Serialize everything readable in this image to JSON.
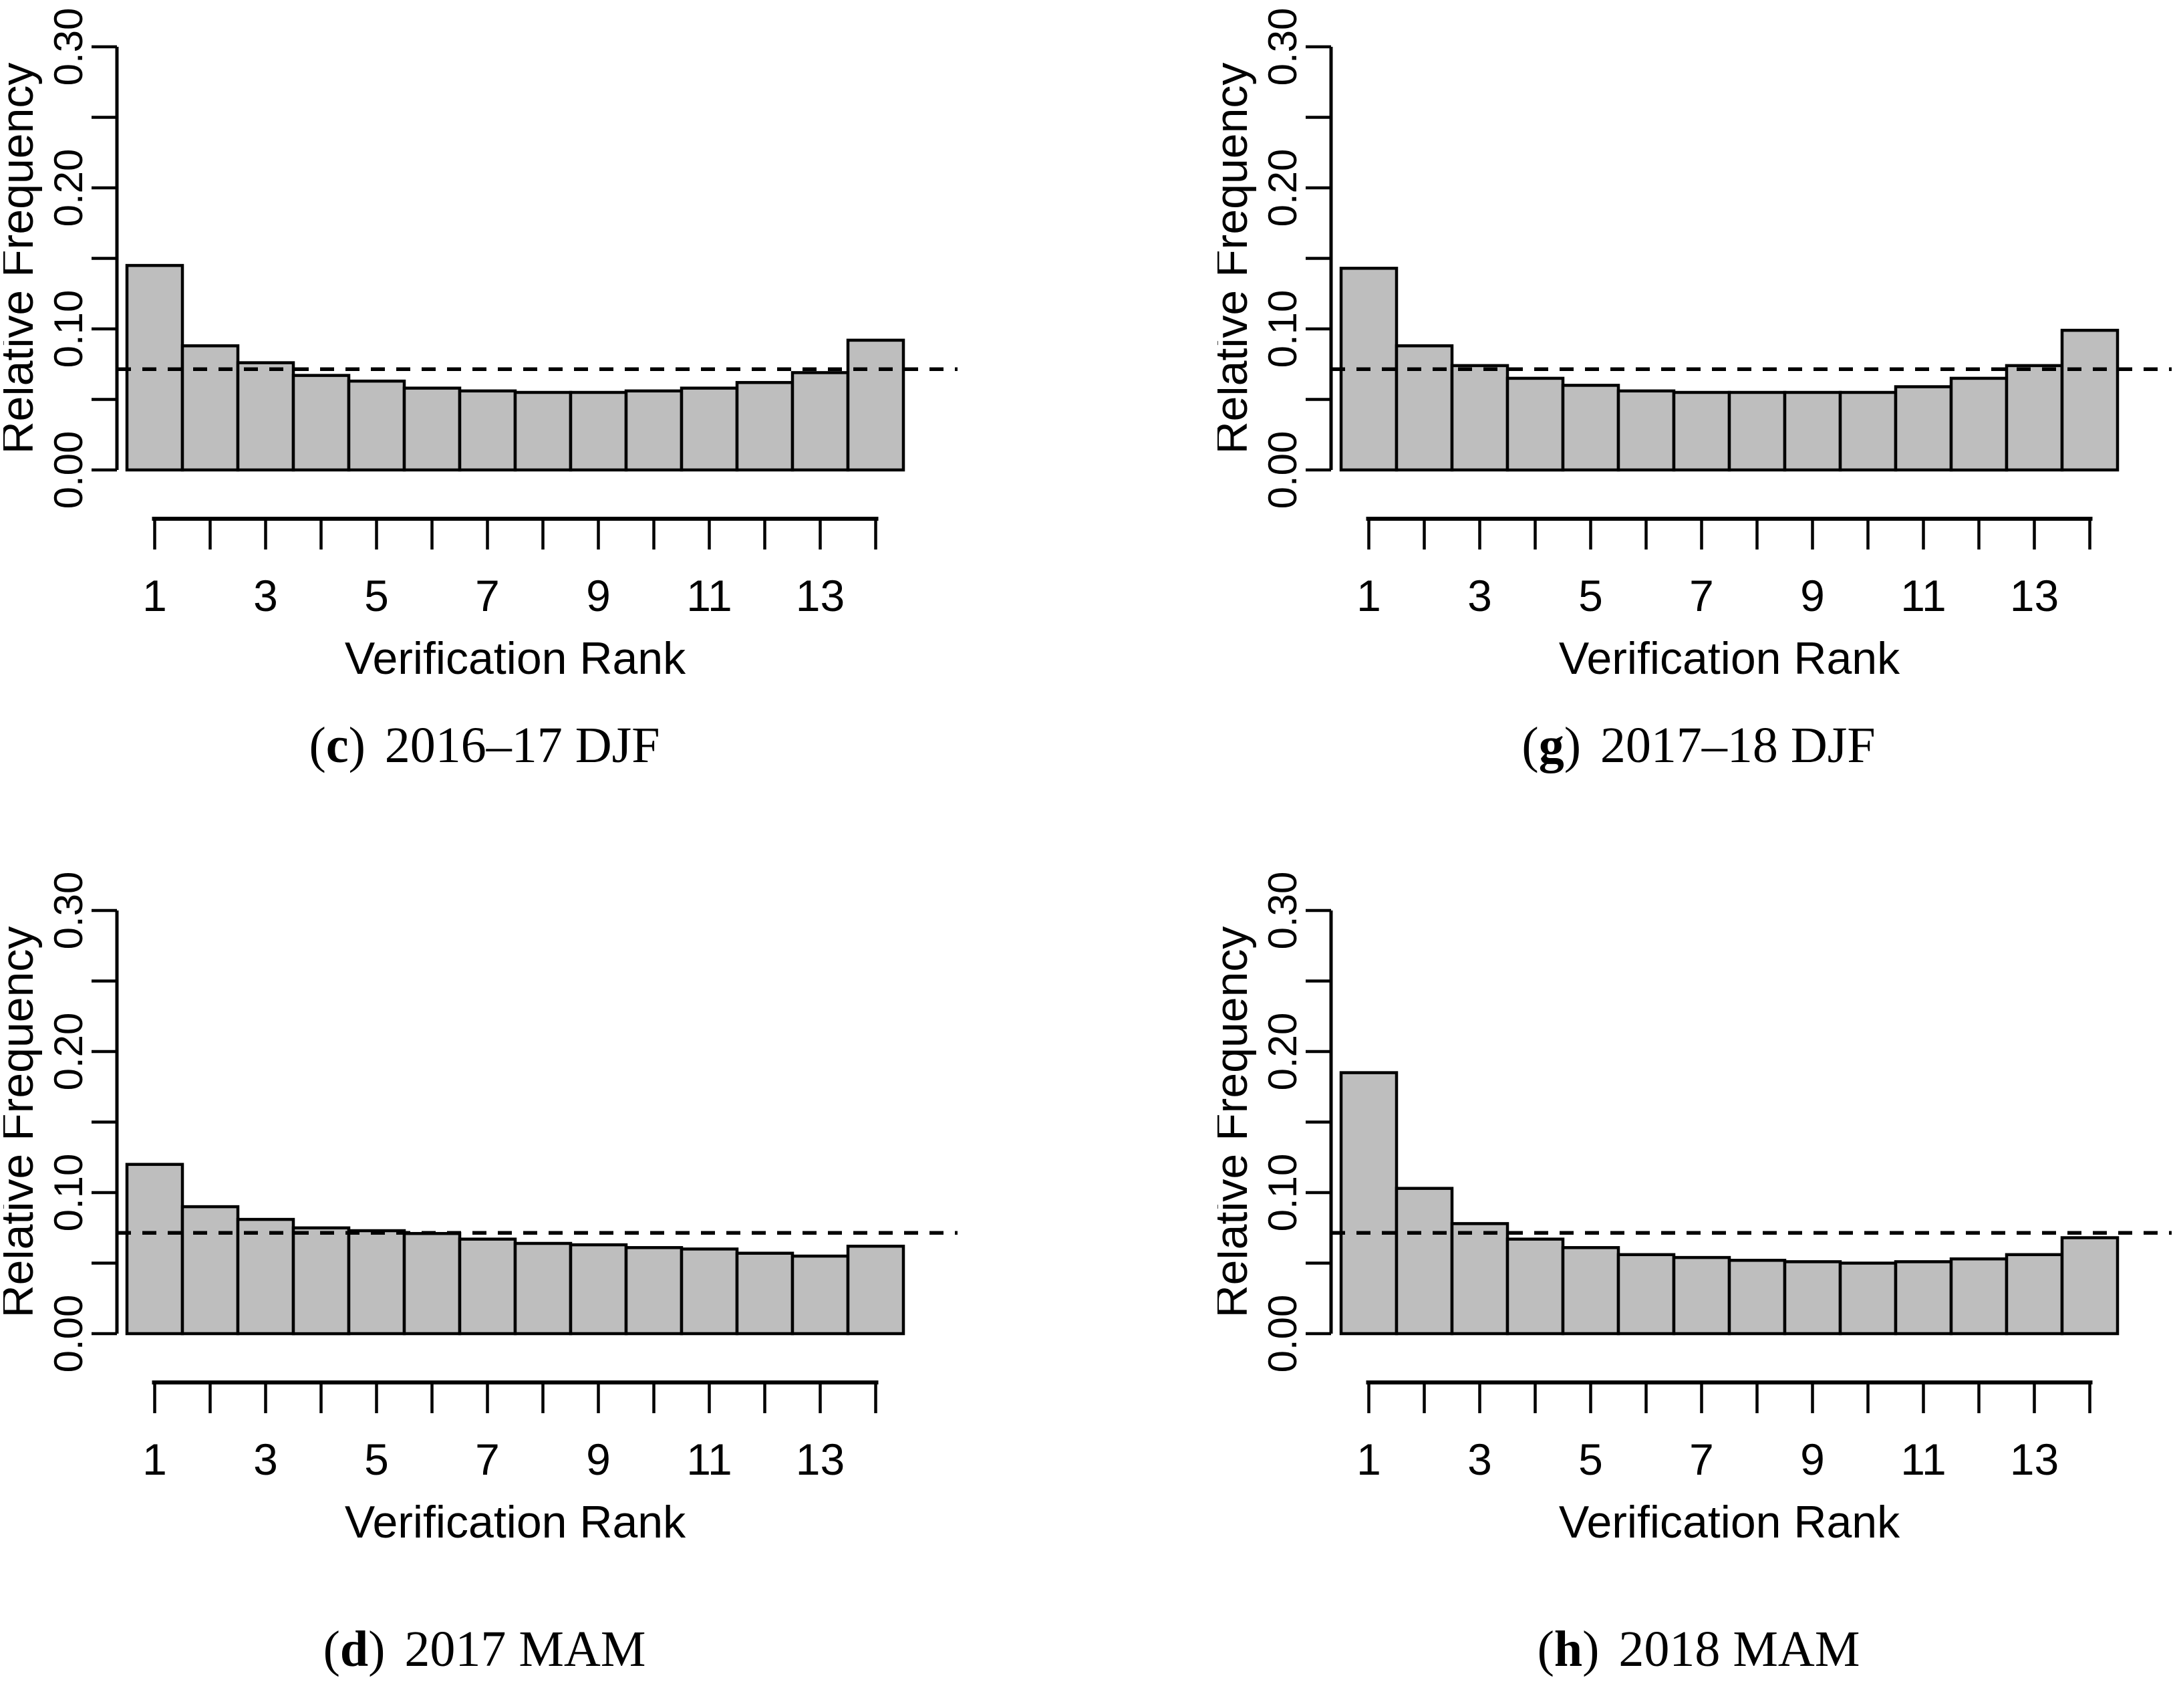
{
  "shared": {
    "caption_open": "(",
    "caption_close": ")",
    "colors": {
      "background": "#ffffff",
      "bar_fill": "#bebebe",
      "bar_stroke": "#000000",
      "axis": "#000000",
      "reference_line": "#000000",
      "text": "#000000"
    }
  },
  "chart_data": [
    {
      "type": "bar",
      "panel": "top-left",
      "title": "(c) 2016–17 DJF",
      "caption": {
        "letter": "c",
        "text": "2016–17 DJF"
      },
      "xlabel": "Verification Rank",
      "ylabel": "Relative Frequency",
      "ylim": [
        0,
        0.3
      ],
      "y_tick_step": 0.05,
      "y_tick_labels": [
        "0.00",
        "0.10",
        "0.20",
        "0.30"
      ],
      "x_tick_labels": [
        "1",
        "3",
        "5",
        "7",
        "9",
        "11",
        "13"
      ],
      "categories": [
        1,
        2,
        3,
        4,
        5,
        6,
        7,
        8,
        9,
        10,
        11,
        12,
        13,
        14
      ],
      "values": [
        0.145,
        0.088,
        0.076,
        0.067,
        0.063,
        0.058,
        0.056,
        0.055,
        0.055,
        0.056,
        0.058,
        0.062,
        0.069,
        0.092
      ],
      "reference_line": 0.0714,
      "grid": false,
      "legend": "none"
    },
    {
      "type": "bar",
      "panel": "top-right",
      "title": "(g) 2017–18 DJF",
      "caption": {
        "letter": "g",
        "text": "2017–18 DJF"
      },
      "xlabel": "Verification Rank",
      "ylabel": "Relative Frequency",
      "ylim": [
        0,
        0.3
      ],
      "y_tick_step": 0.05,
      "y_tick_labels": [
        "0.00",
        "0.10",
        "0.20",
        "0.30"
      ],
      "x_tick_labels": [
        "1",
        "3",
        "5",
        "7",
        "9",
        "11",
        "13"
      ],
      "categories": [
        1,
        2,
        3,
        4,
        5,
        6,
        7,
        8,
        9,
        10,
        11,
        12,
        13,
        14
      ],
      "values": [
        0.143,
        0.088,
        0.074,
        0.065,
        0.06,
        0.056,
        0.055,
        0.055,
        0.055,
        0.055,
        0.059,
        0.065,
        0.074,
        0.099
      ],
      "reference_line": 0.0714,
      "grid": false,
      "legend": "none"
    },
    {
      "type": "bar",
      "panel": "bottom-left",
      "title": "(d) 2017 MAM",
      "caption": {
        "letter": "d",
        "text": "2017 MAM"
      },
      "xlabel": "Verification Rank",
      "ylabel": "Relative Frequency",
      "ylim": [
        0,
        0.3
      ],
      "y_tick_step": 0.05,
      "y_tick_labels": [
        "0.00",
        "0.10",
        "0.20",
        "0.30"
      ],
      "x_tick_labels": [
        "1",
        "3",
        "5",
        "7",
        "9",
        "11",
        "13"
      ],
      "categories": [
        1,
        2,
        3,
        4,
        5,
        6,
        7,
        8,
        9,
        10,
        11,
        12,
        13,
        14
      ],
      "values": [
        0.12,
        0.09,
        0.081,
        0.075,
        0.073,
        0.071,
        0.067,
        0.064,
        0.063,
        0.061,
        0.06,
        0.057,
        0.055,
        0.062
      ],
      "reference_line": 0.0714,
      "grid": false,
      "legend": "none"
    },
    {
      "type": "bar",
      "panel": "bottom-right",
      "title": "(h) 2018 MAM",
      "caption": {
        "letter": "h",
        "text": "2018 MAM"
      },
      "xlabel": "Verification Rank",
      "ylabel": "Relative Frequency",
      "ylim": [
        0,
        0.3
      ],
      "y_tick_step": 0.05,
      "y_tick_labels": [
        "0.00",
        "0.10",
        "0.20",
        "0.30"
      ],
      "x_tick_labels": [
        "1",
        "3",
        "5",
        "7",
        "9",
        "11",
        "13"
      ],
      "categories": [
        1,
        2,
        3,
        4,
        5,
        6,
        7,
        8,
        9,
        10,
        11,
        12,
        13,
        14
      ],
      "values": [
        0.185,
        0.103,
        0.078,
        0.067,
        0.061,
        0.056,
        0.054,
        0.052,
        0.051,
        0.05,
        0.051,
        0.053,
        0.056,
        0.068
      ],
      "reference_line": 0.0714,
      "grid": false,
      "legend": "none"
    }
  ]
}
